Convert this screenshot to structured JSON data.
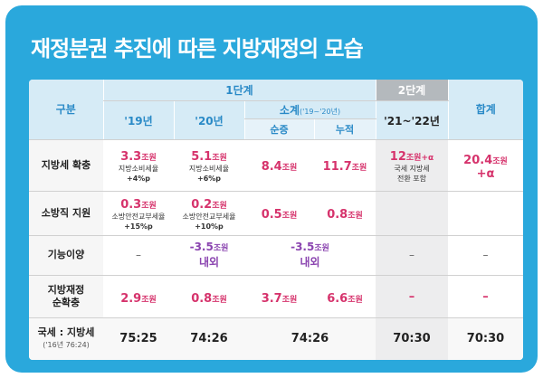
{
  "title": "재정분권 추진에 따른 지방재정의 모습",
  "header": {
    "gubun": "구분",
    "stage1": "1단계",
    "stage2": "2단계",
    "total": "합계",
    "y19": "'19년",
    "y20": "'20년",
    "subtotal": "소계",
    "subtotal_note": "('19~'20년)",
    "net": "순증",
    "cumulative": "누적",
    "y2122": "'21~'22년"
  },
  "rows": [
    {
      "label": "지방세 확충",
      "y19": {
        "value": "3.3",
        "unit": "조원",
        "note1": "지방소비세율",
        "note2": "+4%p"
      },
      "y20": {
        "value": "5.1",
        "unit": "조원",
        "note1": "지방소비세율",
        "note2": "+6%p"
      },
      "net": {
        "value": "8.4",
        "unit": "조원"
      },
      "cum": {
        "value": "11.7",
        "unit": "조원"
      },
      "s2": {
        "value": "12",
        "unit": "조원+α",
        "note1": "국세 지방세",
        "note2": "전환 포함"
      },
      "total": {
        "value": "20.4",
        "unit": "조원",
        "extra": "+α"
      }
    },
    {
      "label": "소방직 지원",
      "y19": {
        "value": "0.3",
        "unit": "조원",
        "note1": "소방안전교부세율",
        "note2": "+15%p"
      },
      "y20": {
        "value": "0.2",
        "unit": "조원",
        "note1": "소방안전교부세율",
        "note2": "+10%p"
      },
      "net": {
        "value": "0.5",
        "unit": "조원"
      },
      "cum": {
        "value": "0.8",
        "unit": "조원"
      }
    },
    {
      "label": "기능이양",
      "y19": "–",
      "y20": {
        "value": "-3.5",
        "unit": "조원",
        "extra": "내외"
      },
      "sub": {
        "value": "-3.5",
        "unit": "조원",
        "extra": "내외"
      },
      "s2": "–",
      "total": "–"
    },
    {
      "label1": "지방재정",
      "label2": "순확충",
      "y19": {
        "value": "2.9",
        "unit": "조원"
      },
      "y20": {
        "value": "0.8",
        "unit": "조원"
      },
      "net": {
        "value": "3.7",
        "unit": "조원"
      },
      "cum": {
        "value": "6.6",
        "unit": "조원"
      },
      "s2": "–",
      "total": "–"
    },
    {
      "label": "국세 : 지방세",
      "label_note": "('16년 76:24)",
      "y19": "75:25",
      "y20": "74:26",
      "sub": "74:26",
      "s2": "70:30",
      "total": "70:30"
    }
  ],
  "colors": {
    "frame": "#2aa8dc",
    "header": "#d6ebf6",
    "accent": "#d6336c",
    "purple": "#8b45b0",
    "stage2": "#b4b9bd"
  }
}
